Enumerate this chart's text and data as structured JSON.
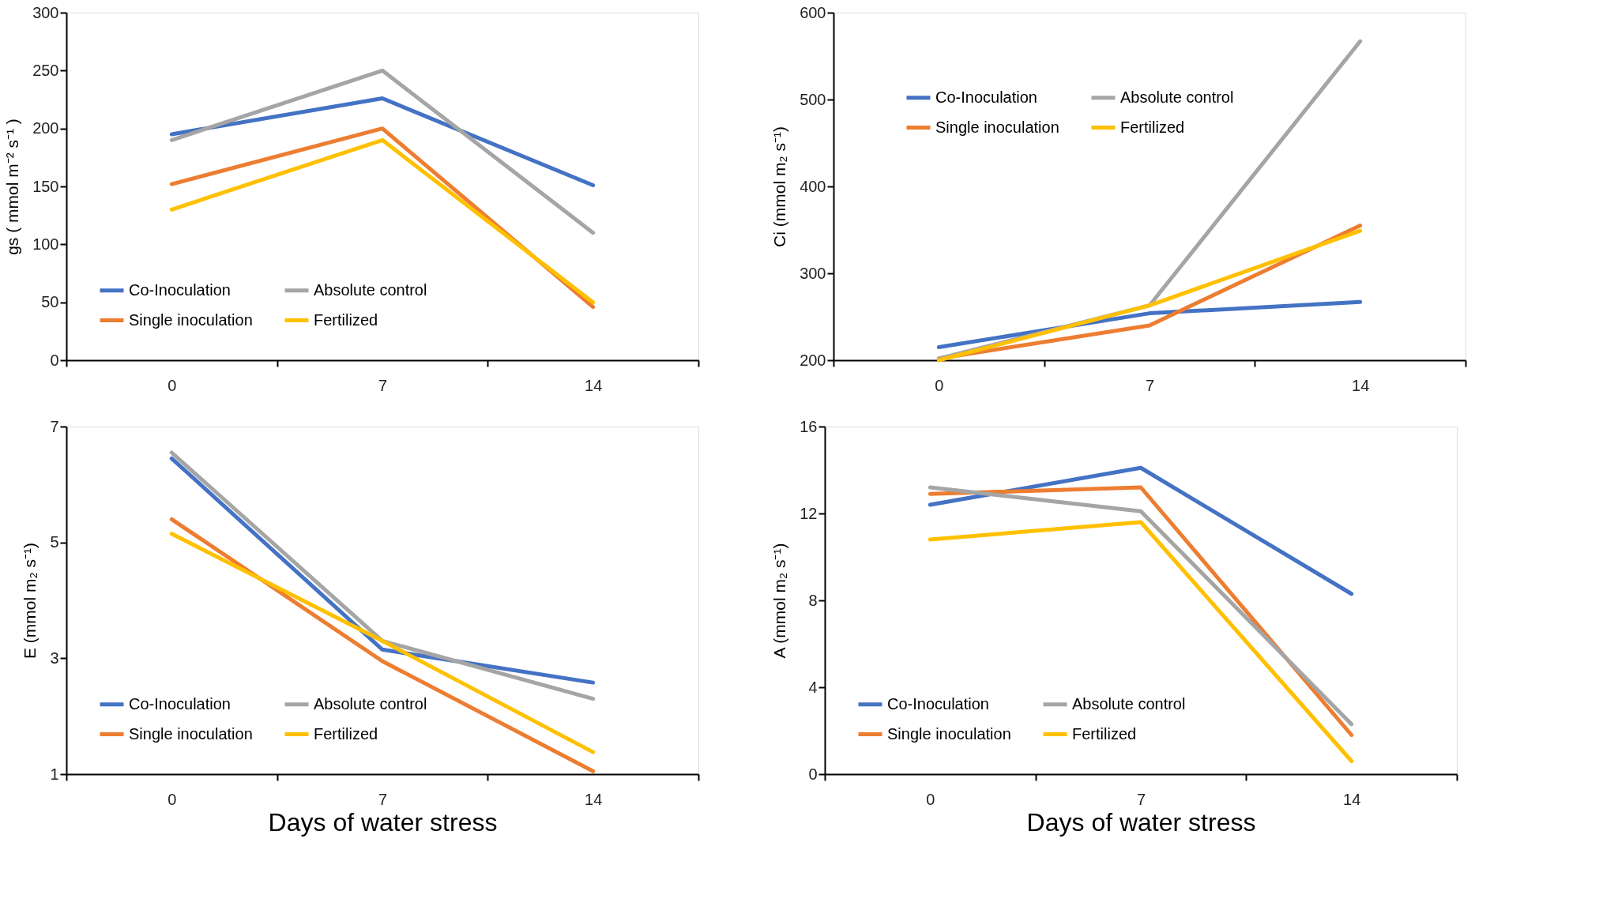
{
  "chart_data": [
    {
      "type": "line",
      "ylabel": "gs ( mmol m⁻² s⁻¹ )",
      "categories": [
        "0",
        "7",
        "14"
      ],
      "ylim": [
        0,
        300
      ],
      "yticks": [
        0,
        50,
        100,
        150,
        200,
        250,
        300
      ],
      "legend": "bottom left",
      "series": [
        {
          "name": "Co-Inoculation",
          "color": "#4472c4",
          "values": [
            195,
            226,
            151
          ]
        },
        {
          "name": "Single inoculation",
          "color": "#ed7d31",
          "values": [
            152,
            200,
            46
          ]
        },
        {
          "name": "Absolute control",
          "color": "#a5a5a5",
          "values": [
            190,
            250,
            110
          ]
        },
        {
          "name": "Fertilized",
          "color": "#ffc000",
          "values": [
            130,
            190,
            50
          ]
        }
      ]
    },
    {
      "type": "line",
      "ylabel": "Ci (mmol m₂ s⁻¹)",
      "categories": [
        "0",
        "7",
        "14"
      ],
      "ylim": [
        200,
        600
      ],
      "yticks": [
        200,
        300,
        400,
        500,
        600
      ],
      "legend": "top left",
      "series": [
        {
          "name": "Co-Inoculation",
          "color": "#4472c4",
          "values": [
            215,
            254,
            267
          ]
        },
        {
          "name": "Single inoculation",
          "color": "#ed7d31",
          "values": [
            202,
            240,
            355
          ]
        },
        {
          "name": "Absolute control",
          "color": "#a5a5a5",
          "values": [
            202,
            263,
            567
          ]
        },
        {
          "name": "Fertilized",
          "color": "#ffc000",
          "values": [
            200,
            263,
            349
          ]
        }
      ]
    },
    {
      "type": "line",
      "ylabel": "E (mmol m₂ s⁻¹)",
      "xlabel": "Days of water stress",
      "categories": [
        "0",
        "7",
        "14"
      ],
      "ylim": [
        1,
        7
      ],
      "yticks": [
        1,
        3,
        5,
        7
      ],
      "legend": "bottom left",
      "series": [
        {
          "name": "Co-Inoculation",
          "color": "#4472c4",
          "values": [
            6.45,
            3.15,
            2.58
          ]
        },
        {
          "name": "Single inoculation",
          "color": "#ed7d31",
          "values": [
            5.4,
            2.95,
            1.05
          ]
        },
        {
          "name": "Absolute control",
          "color": "#a5a5a5",
          "values": [
            6.55,
            3.3,
            2.3
          ]
        },
        {
          "name": "Fertilized",
          "color": "#ffc000",
          "values": [
            5.15,
            3.3,
            1.38
          ]
        }
      ]
    },
    {
      "type": "line",
      "ylabel": "A (mmol m₂ s⁻¹)",
      "xlabel": "Days of water stress",
      "categories": [
        "0",
        "7",
        "14"
      ],
      "ylim": [
        0,
        16
      ],
      "yticks": [
        0,
        4,
        8,
        12,
        16
      ],
      "legend": "bottom left",
      "series": [
        {
          "name": "Co-Inoculation",
          "color": "#4472c4",
          "values": [
            12.4,
            14.1,
            8.3
          ]
        },
        {
          "name": "Single inoculation",
          "color": "#ed7d31",
          "values": [
            12.9,
            13.2,
            1.8
          ]
        },
        {
          "name": "Absolute control",
          "color": "#a5a5a5",
          "values": [
            13.2,
            12.1,
            2.3
          ]
        },
        {
          "name": "Fertilized",
          "color": "#ffc000",
          "values": [
            10.8,
            11.6,
            0.6
          ]
        }
      ]
    }
  ]
}
